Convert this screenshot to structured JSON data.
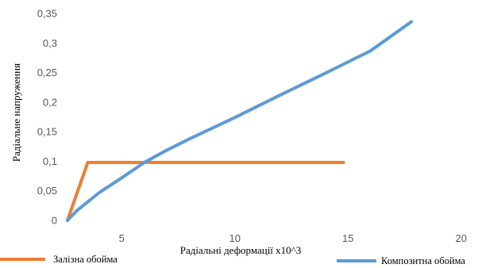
{
  "chart_data": {
    "type": "line",
    "ylabel": "Радіальне напруження",
    "xlabel": "Радіальні деформації х10^3",
    "xlim": [
      2.5,
      20.5
    ],
    "ylim": [
      0,
      0.35
    ],
    "grid": false,
    "legend_position": "bottom",
    "x_ticks": [
      {
        "value": 5,
        "label": "5"
      },
      {
        "value": 10,
        "label": "10"
      },
      {
        "value": 15,
        "label": "15"
      },
      {
        "value": 20,
        "label": "20"
      }
    ],
    "y_ticks": [
      {
        "value": 0,
        "label": "0"
      },
      {
        "value": 0.05,
        "label": "0,05"
      },
      {
        "value": 0.1,
        "label": "0,1"
      },
      {
        "value": 0.15,
        "label": "0,15"
      },
      {
        "value": 0.2,
        "label": "0,2"
      },
      {
        "value": 0.25,
        "label": "0,25"
      },
      {
        "value": 0.3,
        "label": "0,3"
      },
      {
        "value": 0.35,
        "label": "0,35"
      }
    ],
    "series": [
      {
        "name": "Залізна обойма",
        "color": "#ED7D31",
        "points": [
          [
            2.6,
            0.0
          ],
          [
            3.5,
            0.098
          ],
          [
            14.8,
            0.098
          ]
        ]
      },
      {
        "name": "Композитна обойма",
        "color": "#5B9BD5",
        "points": [
          [
            2.6,
            0.0
          ],
          [
            3.0,
            0.016
          ],
          [
            4.0,
            0.047
          ],
          [
            5.0,
            0.072
          ],
          [
            6.0,
            0.098
          ],
          [
            7.0,
            0.119
          ],
          [
            8.0,
            0.138
          ],
          [
            10.0,
            0.174
          ],
          [
            12.0,
            0.212
          ],
          [
            14.0,
            0.249
          ],
          [
            16.0,
            0.287
          ],
          [
            17.8,
            0.336
          ]
        ]
      }
    ]
  }
}
